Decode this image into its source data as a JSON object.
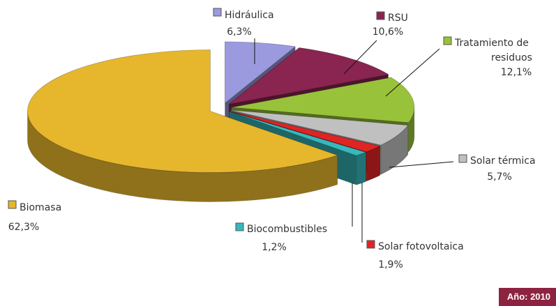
{
  "chart_data": {
    "type": "pie",
    "slices": [
      {
        "name": "Hidráulica",
        "label_lines": [
          "Hidráulica"
        ],
        "value_text": "6,3%",
        "value": 6.3,
        "color": "#9c9ade"
      },
      {
        "name": "RSU",
        "label_lines": [
          "RSU"
        ],
        "value_text": "10,6%",
        "value": 10.6,
        "color": "#8a2450"
      },
      {
        "name": "Tratamiento de residuos",
        "label_lines": [
          "Tratamiento de",
          "residuos"
        ],
        "value_text": "12,1%",
        "value": 12.1,
        "color": "#98c23a"
      },
      {
        "name": "Solar térmica",
        "label_lines": [
          "Solar térmica"
        ],
        "value_text": "5,7%",
        "value": 5.7,
        "color": "#c0c0c0"
      },
      {
        "name": "Solar fotovoltaica",
        "label_lines": [
          "Solar fotovoltaica"
        ],
        "value_text": "1,9%",
        "value": 1.9,
        "color": "#e02424"
      },
      {
        "name": "Biocombustibles",
        "label_lines": [
          "Biocombustibles"
        ],
        "value_text": "1,2%",
        "value": 1.2,
        "color": "#36b8bc"
      },
      {
        "name": "Biomasa",
        "label_lines": [
          "Biomasa"
        ],
        "value_text": "62,3%",
        "value": 62.3,
        "color": "#e6b62c"
      }
    ],
    "style": "3d-exploded",
    "legend_placement": "labels beside slices"
  },
  "year_label": "Año: 2010"
}
